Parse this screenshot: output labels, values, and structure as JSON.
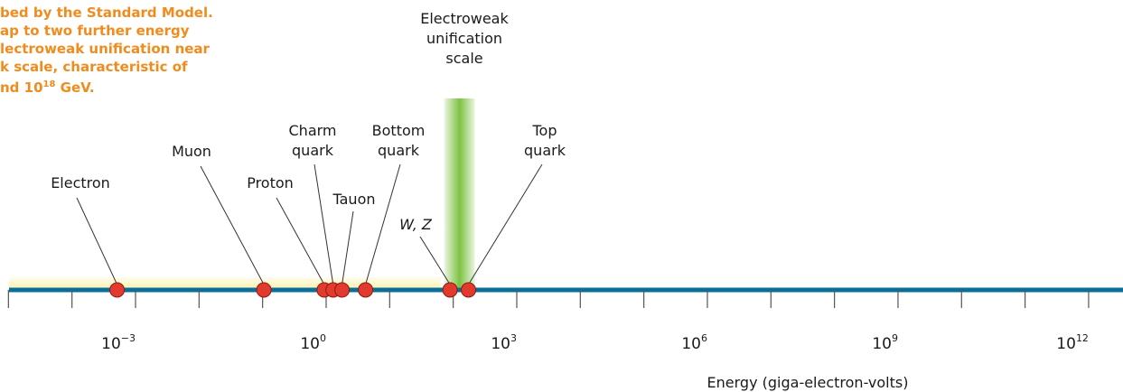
{
  "caption": {
    "lines": [
      "bed by the Standard Model.",
      "ap to two further energy",
      "lectroweak unification near",
      "k scale, characteristic of",
      "nd 10"
    ],
    "exponent": "18",
    "tail": " GeV."
  },
  "colors": {
    "axis": "#0a6e9a",
    "particle": "#e23b2e",
    "caption": "#f08c1e",
    "highlight_band": "#fbf1a8",
    "electroweak_band": "#7cc242"
  },
  "chart_data": {
    "type": "scatter",
    "xlabel": "Energy (giga-electron-volts)",
    "x_scale": "log",
    "xlim_exponent": [
      -5,
      12
    ],
    "tick_labels": [
      {
        "base": "10",
        "exp": "−3",
        "exponent": -3
      },
      {
        "base": "10",
        "exp": "0",
        "exponent": 0
      },
      {
        "base": "10",
        "exp": "3",
        "exponent": 3
      },
      {
        "base": "10",
        "exp": "6",
        "exponent": 6
      },
      {
        "base": "10",
        "exp": "9",
        "exponent": 9
      },
      {
        "base": "10",
        "exp": "12",
        "exponent": 12
      }
    ],
    "minor_tick_exponents": [
      -5,
      -4,
      -2,
      -1,
      1,
      2,
      4,
      5,
      7,
      8,
      10,
      11
    ],
    "particles": [
      {
        "label": [
          "Electron"
        ],
        "log10_gev": -3.29,
        "italic": false
      },
      {
        "label": [
          "Muon"
        ],
        "log10_gev": -0.98,
        "italic": false
      },
      {
        "label": [
          "Proton"
        ],
        "log10_gev": -0.03,
        "italic": false
      },
      {
        "label": [
          "Charm",
          "quark"
        ],
        "log10_gev": 0.11,
        "italic": false
      },
      {
        "label": [
          "Tauon"
        ],
        "log10_gev": 0.25,
        "italic": false
      },
      {
        "label": [
          "Bottom",
          "quark"
        ],
        "log10_gev": 0.62,
        "italic": false
      },
      {
        "label": [
          "W, Z"
        ],
        "log10_gev": 1.95,
        "italic": true
      },
      {
        "label": [
          "Top",
          "quark"
        ],
        "log10_gev": 2.24,
        "italic": false
      }
    ],
    "low_energy_region_exponent": [
      -5,
      1.8
    ],
    "electroweak": {
      "label": [
        "Electroweak",
        "unification",
        "scale"
      ],
      "log10_gev": 2.1
    }
  }
}
